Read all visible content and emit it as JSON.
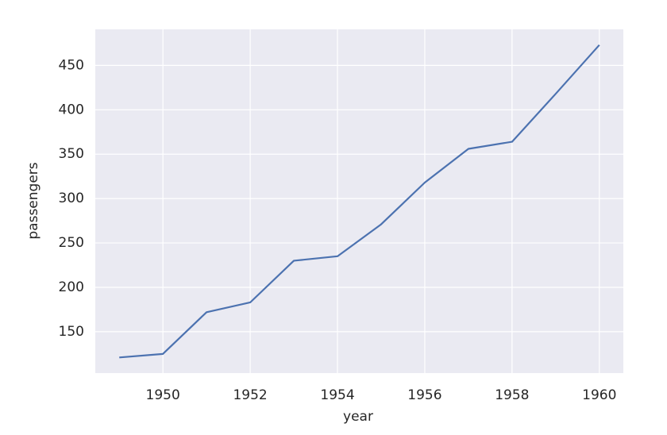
{
  "chart_data": {
    "type": "line",
    "x_label": "year",
    "y_label": "passengers",
    "x": [
      1949,
      1950,
      1951,
      1952,
      1953,
      1954,
      1955,
      1956,
      1957,
      1958,
      1959,
      1960
    ],
    "series": [
      {
        "name": "passengers",
        "color": "#4c72b0",
        "values": [
          121,
          125,
          172,
          183,
          230,
          235,
          271,
          318,
          356,
          364,
          418,
          473
        ]
      }
    ],
    "xlim": [
      1948.45,
      1960.55
    ],
    "xticks": [
      1950,
      1952,
      1954,
      1956,
      1958,
      1960
    ],
    "ylim": [
      103.4,
      490.6
    ],
    "yticks": [
      150,
      200,
      250,
      300,
      350,
      400,
      450
    ],
    "grid": true,
    "background": "#eaeaf2",
    "grid_color": "#ffffff"
  }
}
